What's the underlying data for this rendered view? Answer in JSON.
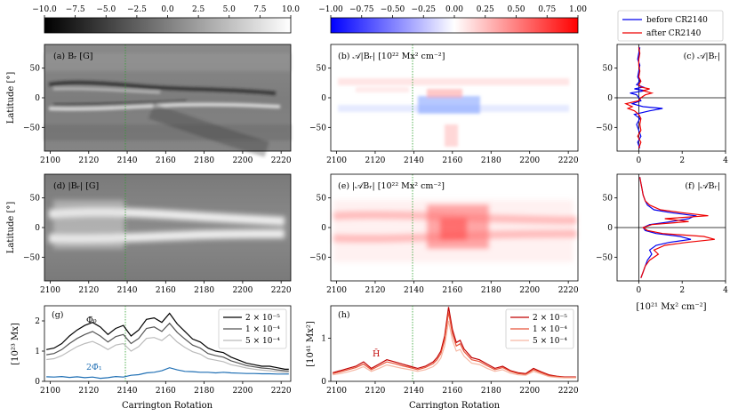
{
  "figure": {
    "cb1_ticks": [
      "−10.0",
      "−7.5",
      "−5.0",
      "−2.5",
      "0.0",
      "2.5",
      "5.0",
      "7.5",
      "10.0"
    ],
    "cb2_ticks": [
      "−1.00",
      "−0.75",
      "−0.50",
      "−0.25",
      "0.00",
      "0.25",
      "0.50",
      "0.75",
      "1.00"
    ],
    "x_ticks": [
      "2100",
      "2120",
      "2140",
      "2160",
      "2180",
      "2200",
      "2220"
    ],
    "lat_ticks": [
      "50",
      "0",
      "−50"
    ],
    "prof_x_ticks": [
      "0",
      "2",
      "4"
    ],
    "g_y_ticks": [
      "0",
      "1",
      "2"
    ],
    "h_y_ticks": [
      "0",
      "1"
    ],
    "ylabel_lat": "Latitude [°]",
    "xlabel_cr": "Carrington Rotation",
    "ylabel_g": "[10²³ Mx]",
    "ylabel_h": "[10⁴¹ Mx²]",
    "xlabel_prof": "[10²¹ Mx² cm⁻²]",
    "legend_top": {
      "before": "before CR2140",
      "after": "after CR2140"
    },
    "panel_labels": {
      "a": "(a) Bᵣ [G]",
      "b": "(b) 𝒜|Bᵣ| [10²² Mx² cm⁻²]",
      "c": "(c) 𝒜|Bᵣ|",
      "d": "(d) |Bᵣ| [G]",
      "e": "(e) |𝒜Bᵣ| [10²² Mx² cm⁻²]",
      "f": "(f) |𝒜Bᵣ|",
      "g": "(g)",
      "h": "(h)"
    },
    "annotations": {
      "phi0": "Φ̄₀",
      "phi1": "2Φ̄₁",
      "hbar": "H̄"
    },
    "legend_g": [
      "2 × 10⁻⁵",
      "1 × 10⁻⁴",
      "5 × 10⁻⁴"
    ],
    "legend_h": [
      "2 × 10⁻⁵",
      "1 × 10⁻⁴",
      "5 × 10⁻⁴"
    ],
    "colors": {
      "g1": "#000000",
      "g2": "#555555",
      "g3": "#bbbbbb",
      "g4": "#1f6fb4",
      "h1": "#c00000",
      "h2": "#e8553a",
      "h3": "#f6b8a4",
      "before": "#0000ee",
      "after": "#ee0000",
      "marker": "#2ca02c"
    }
  },
  "chart_data": [
    {
      "panel": "g",
      "type": "line",
      "xlabel": "Carrington Rotation",
      "ylabel": "[10²³ Mx]",
      "xlim": [
        2097,
        2225
      ],
      "ylim": [
        0,
        2.5
      ],
      "x": [
        2098,
        2102,
        2106,
        2110,
        2114,
        2118,
        2122,
        2126,
        2130,
        2134,
        2138,
        2142,
        2146,
        2150,
        2154,
        2158,
        2162,
        2166,
        2170,
        2174,
        2178,
        2182,
        2186,
        2190,
        2194,
        2198,
        2202,
        2206,
        2210,
        2214,
        2218,
        2222,
        2224
      ],
      "series": [
        {
          "name": "2 × 10⁻⁵",
          "values": [
            1.05,
            1.1,
            1.25,
            1.5,
            1.7,
            1.85,
            1.95,
            1.8,
            1.55,
            1.75,
            1.85,
            1.5,
            1.7,
            2.05,
            2.1,
            1.95,
            2.25,
            1.9,
            1.65,
            1.4,
            1.3,
            1.1,
            1.0,
            0.95,
            0.8,
            0.7,
            0.6,
            0.55,
            0.5,
            0.5,
            0.45,
            0.4,
            0.4
          ]
        },
        {
          "name": "1 × 10⁻⁴",
          "values": [
            0.88,
            0.92,
            1.05,
            1.25,
            1.42,
            1.55,
            1.65,
            1.5,
            1.3,
            1.48,
            1.55,
            1.25,
            1.42,
            1.75,
            1.8,
            1.65,
            1.92,
            1.62,
            1.4,
            1.2,
            1.1,
            0.92,
            0.85,
            0.8,
            0.68,
            0.6,
            0.52,
            0.48,
            0.44,
            0.42,
            0.38,
            0.35,
            0.34
          ]
        },
        {
          "name": "5 × 10⁻⁴",
          "values": [
            0.72,
            0.75,
            0.85,
            1.0,
            1.15,
            1.25,
            1.32,
            1.2,
            1.05,
            1.2,
            1.25,
            1.0,
            1.15,
            1.42,
            1.45,
            1.35,
            1.55,
            1.3,
            1.12,
            0.98,
            0.9,
            0.75,
            0.7,
            0.65,
            0.55,
            0.5,
            0.44,
            0.4,
            0.37,
            0.35,
            0.32,
            0.3,
            0.29
          ]
        },
        {
          "name": "2Φ̄₁",
          "values": [
            0.15,
            0.14,
            0.16,
            0.13,
            0.15,
            0.12,
            0.14,
            0.1,
            0.12,
            0.16,
            0.14,
            0.2,
            0.22,
            0.28,
            0.3,
            0.35,
            0.45,
            0.38,
            0.33,
            0.32,
            0.3,
            0.3,
            0.28,
            0.3,
            0.28,
            0.27,
            0.26,
            0.26,
            0.25,
            0.25,
            0.24,
            0.24,
            0.24
          ]
        }
      ]
    },
    {
      "panel": "h",
      "type": "line",
      "xlabel": "Carrington Rotation",
      "ylabel": "[10⁴¹ Mx²]",
      "xlim": [
        2097,
        2225
      ],
      "ylim": [
        0,
        1.75
      ],
      "x": [
        2098,
        2102,
        2106,
        2110,
        2114,
        2118,
        2122,
        2126,
        2130,
        2134,
        2138,
        2142,
        2146,
        2150,
        2152,
        2154,
        2156,
        2158,
        2160,
        2162,
        2164,
        2166,
        2170,
        2174,
        2178,
        2182,
        2186,
        2190,
        2194,
        2198,
        2202,
        2206,
        2210,
        2214,
        2218,
        2222,
        2224
      ],
      "series": [
        {
          "name": "2 × 10⁻⁵",
          "values": [
            0.2,
            0.25,
            0.3,
            0.35,
            0.45,
            0.3,
            0.4,
            0.5,
            0.45,
            0.4,
            0.35,
            0.3,
            0.35,
            0.45,
            0.55,
            0.7,
            1.05,
            1.72,
            1.2,
            0.9,
            0.95,
            0.75,
            0.55,
            0.5,
            0.4,
            0.3,
            0.35,
            0.25,
            0.2,
            0.18,
            0.3,
            0.22,
            0.15,
            0.12,
            0.1,
            0.1,
            0.1
          ]
        },
        {
          "name": "1 × 10⁻⁴",
          "values": [
            0.18,
            0.22,
            0.27,
            0.32,
            0.4,
            0.27,
            0.36,
            0.45,
            0.41,
            0.36,
            0.32,
            0.27,
            0.32,
            0.41,
            0.5,
            0.64,
            0.96,
            1.6,
            1.1,
            0.82,
            0.87,
            0.69,
            0.5,
            0.46,
            0.36,
            0.27,
            0.32,
            0.23,
            0.18,
            0.16,
            0.27,
            0.2,
            0.13,
            0.11,
            0.09,
            0.09,
            0.09
          ]
        },
        {
          "name": "5 × 10⁻⁴",
          "values": [
            0.15,
            0.18,
            0.22,
            0.27,
            0.34,
            0.23,
            0.3,
            0.38,
            0.34,
            0.3,
            0.27,
            0.23,
            0.27,
            0.34,
            0.42,
            0.54,
            0.82,
            1.4,
            0.95,
            0.7,
            0.74,
            0.58,
            0.42,
            0.39,
            0.3,
            0.23,
            0.27,
            0.19,
            0.15,
            0.14,
            0.23,
            0.17,
            0.11,
            0.09,
            0.08,
            0.08,
            0.08
          ]
        }
      ]
    },
    {
      "panel": "c",
      "type": "line",
      "title": "(c) 𝒜|Bᵣ|",
      "xlim": [
        -1,
        4
      ],
      "ylim": [
        -90,
        90
      ],
      "lat": [
        -85,
        -75,
        -65,
        -55,
        -45,
        -35,
        -28,
        -22,
        -18,
        -15,
        -10,
        -5,
        0,
        5,
        8,
        12,
        15,
        18,
        22,
        28,
        35,
        45,
        55,
        65,
        75,
        85
      ],
      "series": [
        {
          "name": "before CR2140",
          "values": [
            0.05,
            -0.05,
            0.1,
            0.0,
            -0.1,
            0.05,
            -0.2,
            0.5,
            1.1,
            0.2,
            -0.3,
            0.1,
            0.0,
            -0.1,
            -0.4,
            0.3,
            -0.2,
            0.2,
            -0.1,
            0.05,
            -0.05,
            0.0,
            0.05,
            -0.05,
            0.0,
            0.05
          ]
        },
        {
          "name": "after CR2140",
          "values": [
            0.0,
            0.1,
            -0.05,
            0.1,
            0.05,
            0.1,
            0.0,
            -0.2,
            -0.5,
            -0.3,
            -0.6,
            0.0,
            0.1,
            0.3,
            0.6,
            0.2,
            0.5,
            0.1,
            0.0,
            0.1,
            0.0,
            0.05,
            0.0,
            0.0,
            0.05,
            0.0
          ]
        }
      ]
    },
    {
      "panel": "f",
      "type": "line",
      "title": "(f) |𝒜Bᵣ|",
      "xlim": [
        -1,
        4
      ],
      "ylim": [
        -90,
        90
      ],
      "lat": [
        -85,
        -75,
        -65,
        -55,
        -45,
        -38,
        -30,
        -25,
        -20,
        -15,
        -10,
        -5,
        0,
        5,
        10,
        15,
        20,
        25,
        30,
        38,
        45,
        55,
        65,
        75,
        85
      ],
      "series": [
        {
          "name": "before CR2140",
          "values": [
            0.1,
            0.2,
            0.3,
            0.4,
            0.6,
            0.5,
            0.8,
            1.4,
            2.4,
            1.9,
            0.8,
            0.3,
            0.2,
            0.5,
            1.5,
            2.3,
            2.6,
            1.5,
            0.7,
            0.4,
            0.3,
            0.2,
            0.15,
            0.1,
            0.05
          ]
        },
        {
          "name": "after CR2140",
          "values": [
            0.1,
            0.2,
            0.3,
            0.5,
            0.9,
            0.7,
            1.2,
            2.2,
            3.5,
            3.0,
            1.1,
            0.4,
            0.2,
            0.6,
            2.3,
            1.2,
            3.2,
            2.0,
            1.0,
            0.5,
            0.3,
            0.2,
            0.15,
            0.1,
            0.05
          ]
        }
      ]
    }
  ]
}
